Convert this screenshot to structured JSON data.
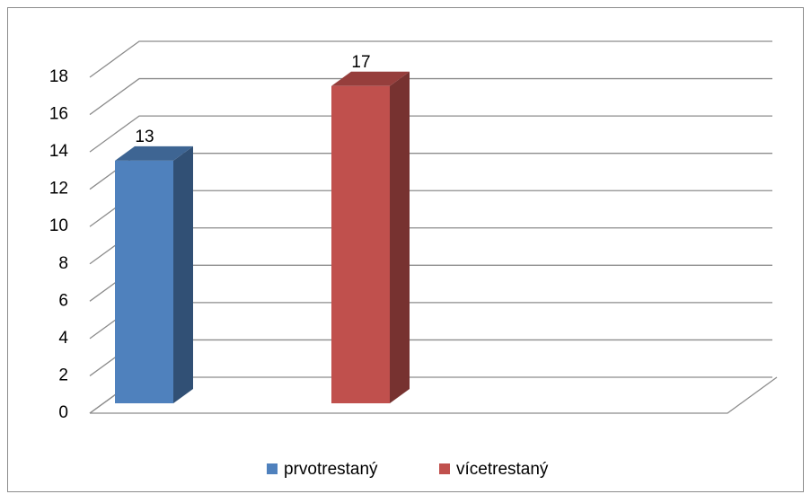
{
  "chart_data": {
    "type": "bar3d",
    "categories": [
      null
    ],
    "series": [
      {
        "name": "prvotrestaný",
        "color": "#4f81bd",
        "values": [
          13
        ]
      },
      {
        "name": "vícetrestaný",
        "color": "#c0504d",
        "values": [
          17
        ]
      }
    ],
    "ylim": [
      0,
      18
    ],
    "yticks": [
      0,
      2,
      4,
      6,
      8,
      10,
      12,
      14,
      16,
      18
    ],
    "grid": true,
    "legend": "bottom"
  }
}
